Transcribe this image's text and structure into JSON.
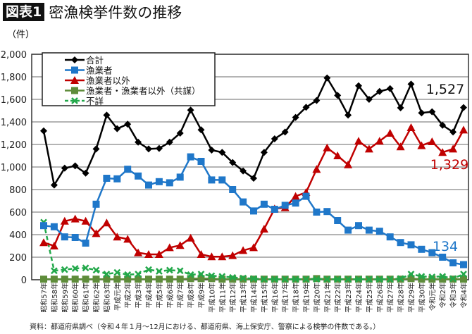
{
  "title": {
    "badge": "図表1",
    "main": "密漁検挙件数の推移"
  },
  "source": "資料：都道府県調べ（令和４年１月～12月における、都道府県、海上保安庁、警察による検挙の件数である。）",
  "chart_data": {
    "type": "line",
    "title": "密漁検挙件数の推移",
    "ylabel": "（件）",
    "ylim": [
      0,
      2000
    ],
    "yticks": [
      "0",
      "200",
      "400",
      "600",
      "800",
      "1,000",
      "1,200",
      "1,400",
      "1,600",
      "1,800",
      "2,000"
    ],
    "grid": true,
    "legend_position": "top-left",
    "categories": [
      "昭和57年",
      "昭和58年",
      "昭和59年",
      "昭和60年",
      "昭和61年",
      "昭和62年",
      "昭和63年",
      "平成元年",
      "平成2年",
      "平成3年",
      "平成4年",
      "平成5年",
      "平成6年",
      "平成7年",
      "平成8年",
      "平成9年",
      "平成10年",
      "平成11年",
      "平成12年",
      "平成13年",
      "平成14年",
      "平成15年",
      "平成16年",
      "平成17年",
      "平成18年",
      "平成19年",
      "平成20年",
      "平成21年",
      "平成22年",
      "平成23年",
      "平成24年",
      "平成25年",
      "平成26年",
      "平成27年",
      "平成28年",
      "平成29年",
      "平成30年",
      "令和元年",
      "令和2年",
      "令和3年",
      "令和4年"
    ],
    "series": [
      {
        "name": "合計",
        "color": "#000000",
        "marker": "diamond",
        "dash": false,
        "values": [
          1320,
          840,
          990,
          1010,
          945,
          1160,
          1460,
          1340,
          1380,
          1220,
          1160,
          1165,
          1220,
          1300,
          1505,
          1330,
          1150,
          1130,
          1040,
          965,
          900,
          1130,
          1250,
          1310,
          1440,
          1530,
          1590,
          1790,
          1635,
          1460,
          1720,
          1600,
          1670,
          1695,
          1525,
          1735,
          1480,
          1490,
          1370,
          1310,
          1527
        ],
        "end_label": "1,527"
      },
      {
        "name": "漁業者",
        "color": "#1F77C9",
        "marker": "square",
        "dash": false,
        "values": [
          480,
          470,
          380,
          375,
          325,
          670,
          900,
          895,
          980,
          920,
          840,
          870,
          860,
          910,
          1090,
          1050,
          885,
          885,
          800,
          690,
          610,
          670,
          625,
          660,
          680,
          740,
          600,
          605,
          525,
          440,
          480,
          440,
          430,
          380,
          330,
          310,
          270,
          240,
          200,
          150,
          134
        ],
        "end_label": "134"
      },
      {
        "name": "漁業者以外",
        "color": "#C00000",
        "marker": "triangle",
        "dash": false,
        "values": [
          330,
          300,
          520,
          540,
          520,
          410,
          505,
          380,
          360,
          240,
          225,
          225,
          285,
          305,
          370,
          225,
          205,
          205,
          215,
          260,
          285,
          450,
          630,
          640,
          740,
          775,
          980,
          1170,
          1100,
          1020,
          1230,
          1160,
          1230,
          1300,
          1180,
          1350,
          1190,
          1225,
          1130,
          1160,
          1329
        ],
        "end_label": "1,329"
      },
      {
        "name": "漁業者・漁業者以外（共謀）",
        "color": "#5E8C3A",
        "marker": "square",
        "dash": false,
        "values": [
          5,
          5,
          5,
          5,
          5,
          5,
          5,
          5,
          5,
          5,
          5,
          5,
          5,
          5,
          10,
          10,
          10,
          5,
          5,
          5,
          5,
          5,
          5,
          5,
          5,
          5,
          10,
          5,
          5,
          5,
          5,
          5,
          5,
          5,
          5,
          10,
          5,
          5,
          5,
          5,
          5
        ]
      },
      {
        "name": "不詳",
        "color": "#22A84A",
        "marker": "x",
        "dash": true,
        "values": [
          510,
          80,
          90,
          100,
          105,
          85,
          50,
          65,
          45,
          50,
          90,
          75,
          85,
          80,
          45,
          50,
          35,
          30,
          20,
          15,
          10,
          5,
          5,
          5,
          5,
          5,
          5,
          5,
          5,
          5,
          5,
          5,
          5,
          5,
          10,
          50,
          30,
          25,
          30,
          10,
          50
        ]
      }
    ]
  }
}
